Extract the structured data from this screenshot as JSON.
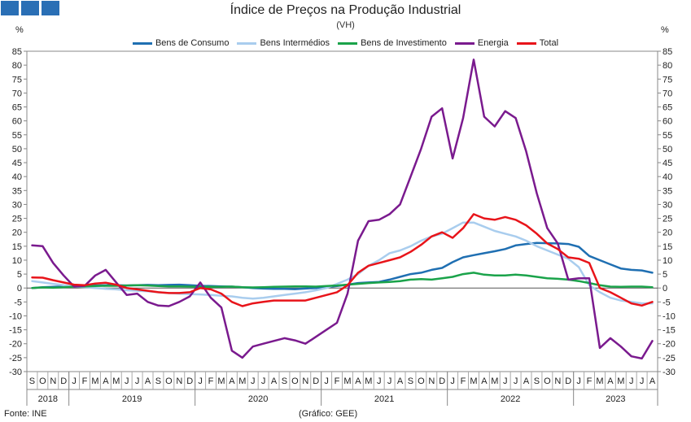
{
  "header": {
    "title": "Índice de Preços na Produção Industrial",
    "subtitle": "(VH)",
    "unit_left": "%",
    "unit_right": "%"
  },
  "footer": {
    "source": "Fonte: INE",
    "credit": "(Gráfico: GEE)"
  },
  "colors": {
    "consumo": "#1f6fb2",
    "intermedios": "#a9cdee",
    "investimento": "#1aa34a",
    "energia": "#7a1a8e",
    "total": "#e8141a"
  },
  "chart_data": {
    "type": "line",
    "ylim": [
      -30,
      85
    ],
    "ytick_step": 5,
    "grid": false,
    "legend": "top-center",
    "x": [
      "S",
      "O",
      "N",
      "D",
      "J",
      "F",
      "M",
      "A",
      "M",
      "J",
      "J",
      "A",
      "S",
      "O",
      "N",
      "D",
      "J",
      "F",
      "M",
      "A",
      "M",
      "J",
      "J",
      "A",
      "S",
      "O",
      "N",
      "D",
      "J",
      "F",
      "M",
      "A",
      "M",
      "J",
      "J",
      "A",
      "S",
      "O",
      "N",
      "D",
      "J",
      "F",
      "M",
      "A",
      "M",
      "J",
      "J",
      "A",
      "S",
      "O",
      "N",
      "D",
      "J",
      "F",
      "M",
      "A",
      "M",
      "J",
      "J",
      "A"
    ],
    "years": [
      {
        "label": "2018",
        "start": 0,
        "end": 3
      },
      {
        "label": "2019",
        "start": 4,
        "end": 15
      },
      {
        "label": "2020",
        "start": 16,
        "end": 27
      },
      {
        "label": "2021",
        "start": 28,
        "end": 39
      },
      {
        "label": "2022",
        "start": 40,
        "end": 51
      },
      {
        "label": "2023",
        "start": 52,
        "end": 59
      }
    ],
    "series": [
      {
        "name": "Bens de Consumo",
        "key": "consumo",
        "values": [
          0,
          0.3,
          0.4,
          0.6,
          0.7,
          0.8,
          0.9,
          1.0,
          1.0,
          0.9,
          1.0,
          1.1,
          1.0,
          1.1,
          1.2,
          1.0,
          0.8,
          0.7,
          0.6,
          0.5,
          0.3,
          0,
          -0.2,
          -0.3,
          -0.3,
          -0.4,
          -0.2,
          0,
          0.3,
          0.7,
          1.2,
          1.8,
          2.0,
          2.2,
          3.0,
          4.0,
          5.0,
          5.5,
          6.5,
          7.2,
          9.3,
          11.0,
          11.8,
          12.5,
          13.2,
          14.0,
          15.3,
          15.8,
          16.2,
          16.1,
          16.0,
          15.8,
          14.8,
          11.5,
          10.0,
          8.5,
          7.0,
          6.5,
          6.3,
          5.5
        ]
      },
      {
        "name": "Bens Intermédios",
        "key": "intermedios",
        "values": [
          2.5,
          2.0,
          1.5,
          1.0,
          0.5,
          0.3,
          0,
          -0.3,
          -0.5,
          -0.8,
          -1.0,
          -1.2,
          -1.5,
          -1.8,
          -2.0,
          -2.2,
          -2.3,
          -2.5,
          -2.8,
          -3.0,
          -3.5,
          -3.8,
          -3.5,
          -3.0,
          -2.5,
          -2.0,
          -1.5,
          -0.8,
          0,
          1.5,
          3.0,
          5.0,
          8.0,
          10.0,
          12.5,
          13.5,
          15.0,
          17.0,
          18.5,
          19.5,
          21.5,
          23.5,
          23.5,
          22.0,
          20.5,
          19.5,
          18.5,
          17.0,
          15.0,
          13.5,
          12.0,
          10.5,
          7.5,
          1.0,
          -1.5,
          -3.5,
          -4.5,
          -5.0,
          -5.5,
          -5.5
        ]
      },
      {
        "name": "Bens de Investimento",
        "key": "investimento",
        "values": [
          0,
          0.2,
          0.1,
          0.3,
          0.5,
          0.6,
          0.7,
          0.8,
          0.8,
          0.9,
          1.0,
          0.9,
          0.7,
          0.6,
          0.6,
          0.5,
          0.4,
          0.4,
          0.4,
          0.5,
          0.3,
          0.2,
          0.3,
          0.4,
          0.5,
          0.6,
          0.6,
          0.5,
          0.7,
          0.9,
          1.2,
          1.5,
          1.8,
          2.0,
          2.2,
          2.5,
          3.0,
          3.2,
          3.0,
          3.5,
          4.0,
          5.0,
          5.5,
          4.8,
          4.5,
          4.5,
          4.8,
          4.5,
          4.0,
          3.5,
          3.3,
          3.0,
          2.5,
          1.8,
          1.0,
          0.5,
          0.4,
          0.5,
          0.5,
          0.3
        ]
      },
      {
        "name": "Energia",
        "key": "energia",
        "values": [
          15.3,
          15.0,
          9.0,
          4.5,
          0.5,
          0.8,
          4.5,
          6.5,
          2.0,
          -2.5,
          -2.0,
          -5.0,
          -6.3,
          -6.5,
          -5.0,
          -3.0,
          2.0,
          -3.5,
          -7.0,
          -22.5,
          -25.0,
          -21.0,
          -20.0,
          -19.0,
          -18.0,
          -18.8,
          -20.0,
          -17.5,
          -15.0,
          -12.5,
          -2.0,
          17.0,
          24.0,
          24.5,
          26.5,
          30.0,
          40.0,
          50.0,
          61.5,
          64.5,
          46.5,
          61.0,
          82.0,
          61.5,
          58.0,
          63.5,
          61.0,
          49.0,
          34.0,
          21.5,
          16.0,
          3.0,
          3.5,
          3.5,
          -21.5,
          -18.0,
          -21.0,
          -24.5,
          -25.3,
          -19.0
        ]
      },
      {
        "name": "Total",
        "key": "total",
        "values": [
          3.8,
          3.7,
          2.8,
          2.0,
          1.2,
          1.0,
          1.6,
          1.9,
          1.2,
          0,
          -0.5,
          -1.0,
          -1.5,
          -1.8,
          -1.8,
          -1.5,
          0,
          -0.5,
          -2.0,
          -5.0,
          -6.5,
          -5.5,
          -5.0,
          -4.5,
          -4.5,
          -4.5,
          -4.5,
          -3.5,
          -2.5,
          -1.5,
          1.0,
          5.5,
          8.0,
          9.0,
          10.0,
          11.0,
          13.0,
          15.5,
          18.5,
          20.0,
          18.0,
          21.5,
          26.5,
          25.0,
          24.5,
          25.5,
          24.5,
          22.5,
          19.5,
          16.0,
          14.0,
          11.0,
          10.5,
          9.0,
          0,
          -1.5,
          -3.5,
          -5.5,
          -6.3,
          -5.0
        ]
      }
    ]
  }
}
